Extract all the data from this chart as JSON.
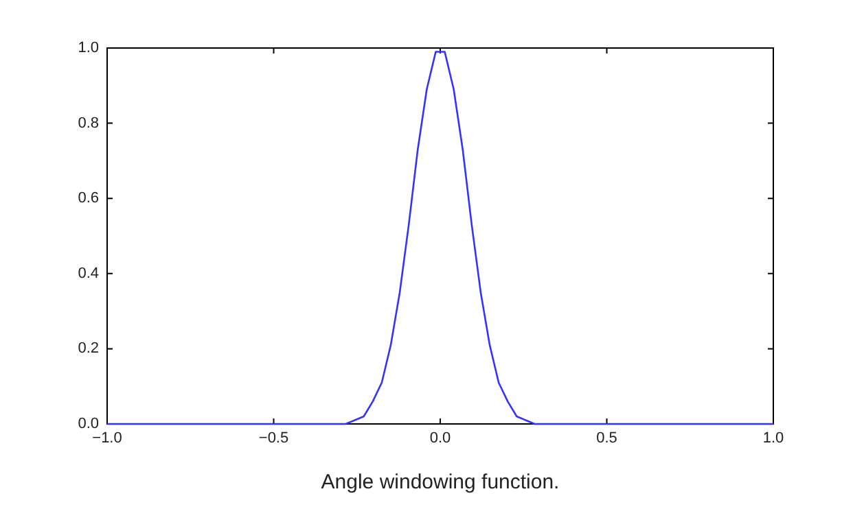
{
  "chart_data": {
    "type": "line",
    "annotations": [
      "Angle windowing function."
    ],
    "x": [
      -1,
      -0.3375,
      -0.3105,
      -0.2835,
      -0.2565,
      -0.2295,
      -0.2025,
      -0.1755,
      -0.1485,
      -0.1215,
      -0.0945,
      -0.0675,
      -0.0405,
      -0.0135,
      0.0135,
      0.0405,
      0.0675,
      0.0945,
      0.1215,
      0.1485,
      0.1755,
      0.2025,
      0.2295,
      0.2565,
      0.2835,
      0.3105,
      0.3375,
      1
    ],
    "series": [
      {
        "color": "#3333ff",
        "values": [
          0,
          0,
          0,
          0,
          0.01,
          0.02,
          0.06,
          0.11,
          0.21,
          0.35,
          0.53,
          0.73,
          0.89,
          0.99,
          0.99,
          0.89,
          0.73,
          0.53,
          0.35,
          0.21,
          0.11,
          0.06,
          0.02,
          0.01,
          0,
          0,
          0,
          0
        ]
      }
    ],
    "xlim": [
      -1,
      1
    ],
    "ylim": [
      0,
      1
    ],
    "xticks": [
      {
        "value": -1,
        "label": "−1.0"
      },
      {
        "value": -0.5,
        "label": "−0.5"
      },
      {
        "value": 0,
        "label": "0.0"
      },
      {
        "value": 0.5,
        "label": "0.5"
      },
      {
        "value": 1,
        "label": "1.0"
      }
    ],
    "yticks": [
      {
        "value": 0,
        "label": "0.0"
      },
      {
        "value": 0.2,
        "label": "0.2"
      },
      {
        "value": 0.4,
        "label": "0.4"
      },
      {
        "value": 0.6,
        "label": "0.6"
      },
      {
        "value": 0.8,
        "label": "0.8"
      },
      {
        "value": 1,
        "label": "1.0"
      }
    ],
    "grid": false,
    "legend": false,
    "marker": "none",
    "line_style": "solid"
  }
}
